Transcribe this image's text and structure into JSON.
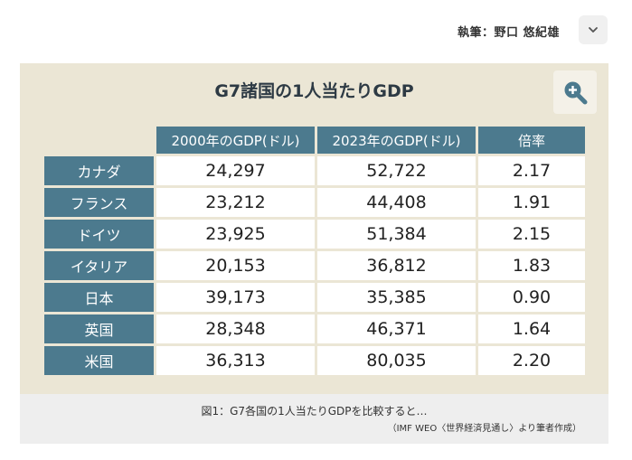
{
  "header": {
    "author": "執筆：野口 悠紀雄",
    "expand_icon": "chevron-down-icon"
  },
  "figure": {
    "title": "G7諸国の1人当たりGDP",
    "zoom_icon": "zoom-in-icon",
    "table": {
      "columns": [
        "2000年のGDP(ドル)",
        "2023年のGDP(ドル)",
        "倍率"
      ],
      "rows": [
        {
          "country": "カナダ",
          "gdp2000": "24,297",
          "gdp2023": "52,722",
          "ratio": "2.17"
        },
        {
          "country": "フランス",
          "gdp2000": "23,212",
          "gdp2023": "44,408",
          "ratio": "1.91"
        },
        {
          "country": "ドイツ",
          "gdp2000": "23,925",
          "gdp2023": "51,384",
          "ratio": "2.15"
        },
        {
          "country": "イタリア",
          "gdp2000": "20,153",
          "gdp2023": "36,812",
          "ratio": "1.83"
        },
        {
          "country": "日本",
          "gdp2000": "39,173",
          "gdp2023": "35,385",
          "ratio": "0.90"
        },
        {
          "country": "英国",
          "gdp2000": "28,348",
          "gdp2023": "46,371",
          "ratio": "1.64"
        },
        {
          "country": "米国",
          "gdp2000": "36,313",
          "gdp2023": "80,035",
          "ratio": "2.20"
        }
      ]
    },
    "caption": "図1：G7各国の1人当たりGDPを比較すると…",
    "source": "（IMF WEO〈世界経済見通し〉より筆者作成）"
  },
  "colors": {
    "figure_bg": "#ebe6d5",
    "header_cell": "#4c7a8e",
    "caption_bg": "#eeeeee"
  }
}
